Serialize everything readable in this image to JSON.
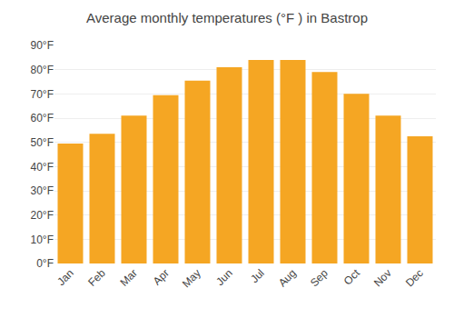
{
  "chart_data": {
    "type": "bar",
    "title": "Average monthly temperatures (°F ) in Bastrop",
    "categories": [
      "Jan",
      "Feb",
      "Mar",
      "Apr",
      "May",
      "Jun",
      "Jul",
      "Aug",
      "Sep",
      "Oct",
      "Nov",
      "Dec"
    ],
    "values": [
      49.5,
      53.5,
      61,
      69.5,
      75.5,
      81,
      84,
      84,
      79,
      70,
      61,
      52.5
    ],
    "color": "#F5A623",
    "ylim": [
      0,
      90
    ],
    "yticks": [
      {
        "value": 0,
        "label": "0°F"
      },
      {
        "value": 10,
        "label": "10°F"
      },
      {
        "value": 20,
        "label": "20°F"
      },
      {
        "value": 30,
        "label": "30°F"
      },
      {
        "value": 40,
        "label": "40°F"
      },
      {
        "value": 50,
        "label": "50°F"
      },
      {
        "value": 60,
        "label": "60°F"
      },
      {
        "value": 70,
        "label": "70°F"
      },
      {
        "value": 80,
        "label": "80°F"
      },
      {
        "value": 90,
        "label": "90°F"
      }
    ],
    "grid": true
  }
}
